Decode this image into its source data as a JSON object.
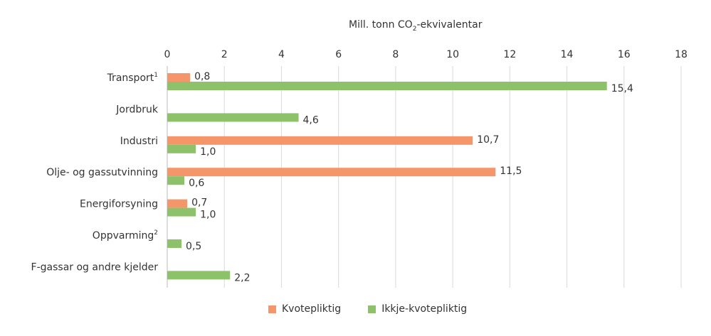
{
  "chart_data": {
    "type": "bar",
    "orientation": "horizontal",
    "title_main": "Mill. tonn CO",
    "title_sub": "2",
    "title_rest": "-ekvivalentar",
    "categories": [
      {
        "label": "Transport",
        "sup": "1"
      },
      {
        "label": "Jordbruk",
        "sup": ""
      },
      {
        "label": "Industri",
        "sup": ""
      },
      {
        "label": "Olje- og gassutvinning",
        "sup": ""
      },
      {
        "label": "Energiforsyning",
        "sup": ""
      },
      {
        "label": "Oppvarming",
        "sup": "2"
      },
      {
        "label": "F-gassar og andre kjelder",
        "sup": ""
      }
    ],
    "series": [
      {
        "name": "Kvotepliktig",
        "color": "#f4956a",
        "values": [
          0.8,
          null,
          10.7,
          11.5,
          0.7,
          null,
          null
        ]
      },
      {
        "name": "Ikkje-kvotepliktig",
        "color": "#8dc26a",
        "values": [
          15.4,
          4.6,
          1.0,
          0.6,
          1.0,
          0.5,
          2.2
        ]
      }
    ],
    "xlim": [
      0,
      18
    ],
    "xticks": [
      0,
      2,
      4,
      6,
      8,
      10,
      12,
      14,
      16,
      18
    ],
    "x_axis_position": "top",
    "grid": true,
    "legend_position": "bottom",
    "decimal_separator": ","
  }
}
